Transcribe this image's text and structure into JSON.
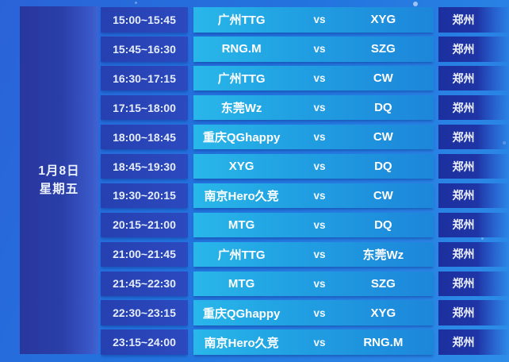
{
  "schedule": {
    "date": "1月8日",
    "weekday": "星期五",
    "vs_label": "vs",
    "rows": [
      {
        "time": "15:00~15:45",
        "team1": "广州TTG",
        "team2": "XYG",
        "location": "郑州"
      },
      {
        "time": "15:45~16:30",
        "team1": "RNG.M",
        "team2": "SZG",
        "location": "郑州"
      },
      {
        "time": "16:30~17:15",
        "team1": "广州TTG",
        "team2": "CW",
        "location": "郑州"
      },
      {
        "time": "17:15~18:00",
        "team1": "东莞Wz",
        "team2": "DQ",
        "location": "郑州"
      },
      {
        "time": "18:00~18:45",
        "team1": "重庆QGhappy",
        "team2": "CW",
        "location": "郑州"
      },
      {
        "time": "18:45~19:30",
        "team1": "XYG",
        "team2": "DQ",
        "location": "郑州"
      },
      {
        "time": "19:30~20:15",
        "team1": "南京Hero久竞",
        "team2": "CW",
        "location": "郑州"
      },
      {
        "time": "20:15~21:00",
        "team1": "MTG",
        "team2": "DQ",
        "location": "郑州"
      },
      {
        "time": "21:00~21:45",
        "team1": "广州TTG",
        "team2": "东莞Wz",
        "location": "郑州"
      },
      {
        "time": "21:45~22:30",
        "team1": "MTG",
        "team2": "SZG",
        "location": "郑州"
      },
      {
        "time": "22:30~23:15",
        "team1": "重庆QGhappy",
        "team2": "XYG",
        "location": "郑州"
      },
      {
        "time": "23:15~24:00",
        "team1": "南京Hero久竞",
        "team2": "RNG.M",
        "location": "郑州"
      }
    ],
    "colors": {
      "background_left": "#2a63d8",
      "background_right": "#2d8de8",
      "date_panel": "#2b3fa9",
      "time_cell": "#2945bb",
      "matchup_left": "#29b7ea",
      "matchup_right": "#1d86da",
      "location_cell": "#1c2f9f",
      "text": "#ffffff"
    }
  }
}
